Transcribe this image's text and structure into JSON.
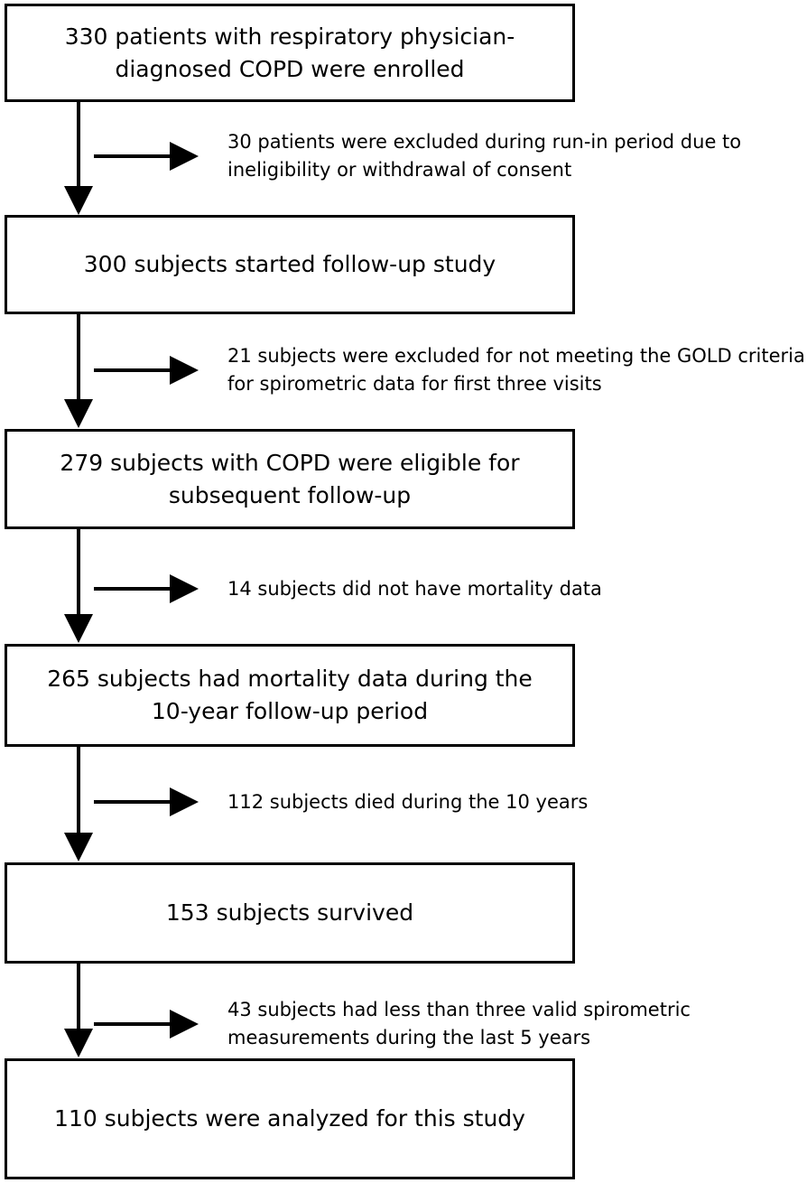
{
  "boxes": [
    {
      "id": "enrolled",
      "text": "330 patients with respiratory physician-diagnosed COPD were enrolled"
    },
    {
      "id": "started",
      "text": "300 subjects started follow-up study"
    },
    {
      "id": "eligible",
      "text": "279 subjects with COPD were eligible for subsequent follow-up"
    },
    {
      "id": "mortality",
      "text": "265 subjects had mortality data during the 10-year follow-up period"
    },
    {
      "id": "survived",
      "text": "153 subjects survived"
    },
    {
      "id": "analyzed",
      "text": "110 subjects were analyzed for this study"
    }
  ],
  "exclusions": [
    {
      "id": "run-in",
      "text": "30 patients were excluded during run-in period due to ineligibility or withdrawal of consent"
    },
    {
      "id": "gold",
      "text": "21 subjects were excluded for not meeting the GOLD criteria for spirometric data for first three visits"
    },
    {
      "id": "no-mortality",
      "text": "14 subjects did not have mortality data"
    },
    {
      "id": "died",
      "text": "112 subjects died during the 10 years"
    },
    {
      "id": "spirometric",
      "text": "43 subjects had less than three valid spirometric measurements during the last 5 years"
    }
  ]
}
